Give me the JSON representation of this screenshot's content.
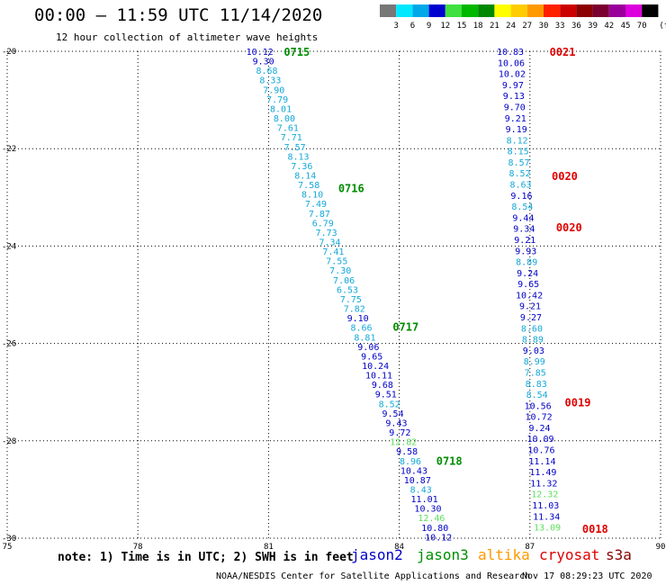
{
  "header": {
    "title": "00:00 – 11:59 UTC 11/14/2020",
    "subtitle": "12 hour collection of altimeter wave heights"
  },
  "legend": {
    "unit": "(ft)",
    "items": [
      {
        "label": "3",
        "color": "#777777"
      },
      {
        "label": "6",
        "color": "#00e8ff"
      },
      {
        "label": "9",
        "color": "#00a8e8"
      },
      {
        "label": "12",
        "color": "#0000d0"
      },
      {
        "label": "15",
        "color": "#40e040"
      },
      {
        "label": "18",
        "color": "#00b800"
      },
      {
        "label": "21",
        "color": "#008800"
      },
      {
        "label": "24",
        "color": "#ffff00"
      },
      {
        "label": "27",
        "color": "#ffcc00"
      },
      {
        "label": "30",
        "color": "#ff9900"
      },
      {
        "label": "33",
        "color": "#ff2000"
      },
      {
        "label": "36",
        "color": "#cc0000"
      },
      {
        "label": "39",
        "color": "#8b0000"
      },
      {
        "label": "42",
        "color": "#7a0030"
      },
      {
        "label": "45",
        "color": "#990099"
      },
      {
        "label": "70",
        "color": "#dd00dd"
      },
      {
        "label": "",
        "color": "#000000"
      }
    ]
  },
  "chart_data": {
    "type": "scatter",
    "xlim": [
      75,
      90
    ],
    "ylim": [
      -30,
      -20
    ],
    "x_ticks": [
      "75",
      "78",
      "81",
      "84",
      "87",
      "90"
    ],
    "y_ticks": [
      "-20",
      "-22",
      "-24",
      "-26",
      "-28",
      "-30"
    ],
    "grid": true,
    "colors": {
      "blue": "#0000c8",
      "cyan": "#14a8d8",
      "lightgreen": "#5ee05e",
      "green": "#008c00",
      "red": "#e00000"
    },
    "tracks": [
      {
        "x_start": 80.8,
        "y_start": -20.0,
        "x_end": 84.9,
        "y_end": -29.97,
        "points": [
          {
            "v": "10.12",
            "c": "blue"
          },
          {
            "v": "9.30",
            "c": "blue"
          },
          {
            "v": "8.68",
            "c": "cyan"
          },
          {
            "v": "8.33",
            "c": "cyan"
          },
          {
            "v": "7.90",
            "c": "cyan"
          },
          {
            "v": "7.79",
            "c": "cyan"
          },
          {
            "v": "8.01",
            "c": "cyan"
          },
          {
            "v": "8.00",
            "c": "cyan"
          },
          {
            "v": "7.61",
            "c": "cyan"
          },
          {
            "v": "7.71",
            "c": "cyan"
          },
          {
            "v": "7.57",
            "c": "cyan"
          },
          {
            "v": "8.13",
            "c": "cyan"
          },
          {
            "v": "7.36",
            "c": "cyan"
          },
          {
            "v": "8.14",
            "c": "cyan"
          },
          {
            "v": "7.58",
            "c": "cyan"
          },
          {
            "v": "8.10",
            "c": "cyan"
          },
          {
            "v": "7.49",
            "c": "cyan"
          },
          {
            "v": "7.87",
            "c": "cyan"
          },
          {
            "v": "6.79",
            "c": "cyan"
          },
          {
            "v": "7.73",
            "c": "cyan"
          },
          {
            "v": "7.34",
            "c": "cyan"
          },
          {
            "v": "7.41",
            "c": "cyan"
          },
          {
            "v": "7.55",
            "c": "cyan"
          },
          {
            "v": "7.30",
            "c": "cyan"
          },
          {
            "v": "7.06",
            "c": "cyan"
          },
          {
            "v": "6.53",
            "c": "cyan"
          },
          {
            "v": "7.75",
            "c": "cyan"
          },
          {
            "v": "7.82",
            "c": "cyan"
          },
          {
            "v": "9.10",
            "c": "blue"
          },
          {
            "v": "8.66",
            "c": "cyan"
          },
          {
            "v": "8.81",
            "c": "cyan"
          },
          {
            "v": "9.06",
            "c": "blue"
          },
          {
            "v": "9.65",
            "c": "blue"
          },
          {
            "v": "10.24",
            "c": "blue"
          },
          {
            "v": "10.11",
            "c": "blue"
          },
          {
            "v": "9.68",
            "c": "blue"
          },
          {
            "v": "9.51",
            "c": "blue"
          },
          {
            "v": "8.52",
            "c": "cyan"
          },
          {
            "v": "9.54",
            "c": "blue"
          },
          {
            "v": "9.43",
            "c": "blue"
          },
          {
            "v": "9.72",
            "c": "blue"
          },
          {
            "v": "12.82",
            "c": "lightgreen"
          },
          {
            "v": "9.58",
            "c": "blue"
          },
          {
            "v": "8.96",
            "c": "cyan"
          },
          {
            "v": "10.43",
            "c": "blue"
          },
          {
            "v": "10.87",
            "c": "blue"
          },
          {
            "v": "8.43",
            "c": "cyan"
          },
          {
            "v": "11.01",
            "c": "blue"
          },
          {
            "v": "10.30",
            "c": "blue"
          },
          {
            "v": "12.46",
            "c": "lightgreen"
          },
          {
            "v": "10.80",
            "c": "blue"
          },
          {
            "v": "10.12",
            "c": "blue"
          }
        ],
        "times": [
          {
            "label": "0715",
            "x": 81.35,
            "y": -20.0,
            "c": "green"
          },
          {
            "label": "0716",
            "x": 82.6,
            "y": -22.8,
            "c": "green"
          },
          {
            "label": "0717",
            "x": 83.85,
            "y": -25.65,
            "c": "green"
          },
          {
            "label": "0718",
            "x": 84.85,
            "y": -28.4,
            "c": "green"
          }
        ]
      },
      {
        "x_start": 86.55,
        "y_start": -20.0,
        "x_end": 87.4,
        "y_end": -29.77,
        "points": [
          {
            "v": "10.83",
            "c": "blue"
          },
          {
            "v": "10.06",
            "c": "blue"
          },
          {
            "v": "10.02",
            "c": "blue"
          },
          {
            "v": "9.97",
            "c": "blue"
          },
          {
            "v": "9.13",
            "c": "blue"
          },
          {
            "v": "9.70",
            "c": "blue"
          },
          {
            "v": "9.21",
            "c": "blue"
          },
          {
            "v": "9.19",
            "c": "blue"
          },
          {
            "v": "8.12",
            "c": "cyan"
          },
          {
            "v": "8.15",
            "c": "cyan"
          },
          {
            "v": "8.57",
            "c": "cyan"
          },
          {
            "v": "8.52",
            "c": "cyan"
          },
          {
            "v": "8.63",
            "c": "cyan"
          },
          {
            "v": "9.16",
            "c": "blue"
          },
          {
            "v": "8.54",
            "c": "cyan"
          },
          {
            "v": "9.44",
            "c": "blue"
          },
          {
            "v": "9.34",
            "c": "blue"
          },
          {
            "v": "9.21",
            "c": "blue"
          },
          {
            "v": "9.93",
            "c": "blue"
          },
          {
            "v": "8.89",
            "c": "cyan"
          },
          {
            "v": "9.24",
            "c": "blue"
          },
          {
            "v": "9.65",
            "c": "blue"
          },
          {
            "v": "10.42",
            "c": "blue"
          },
          {
            "v": "9.21",
            "c": "blue"
          },
          {
            "v": "9.27",
            "c": "blue"
          },
          {
            "v": "8.60",
            "c": "cyan"
          },
          {
            "v": "8.89",
            "c": "cyan"
          },
          {
            "v": "9.03",
            "c": "blue"
          },
          {
            "v": "8.99",
            "c": "cyan"
          },
          {
            "v": "7.85",
            "c": "cyan"
          },
          {
            "v": "8.83",
            "c": "cyan"
          },
          {
            "v": "8.54",
            "c": "cyan"
          },
          {
            "v": "10.56",
            "c": "blue"
          },
          {
            "v": "10.72",
            "c": "blue"
          },
          {
            "v": "9.24",
            "c": "blue"
          },
          {
            "v": "10.09",
            "c": "blue"
          },
          {
            "v": "10.76",
            "c": "blue"
          },
          {
            "v": "11.14",
            "c": "blue"
          },
          {
            "v": "11.49",
            "c": "blue"
          },
          {
            "v": "11.32",
            "c": "blue"
          },
          {
            "v": "12.32",
            "c": "lightgreen"
          },
          {
            "v": "11.03",
            "c": "blue"
          },
          {
            "v": "11.34",
            "c": "blue"
          },
          {
            "v": "13.09",
            "c": "lightgreen"
          }
        ],
        "times": [
          {
            "label": "0021",
            "x": 87.45,
            "y": -20.0,
            "c": "red"
          },
          {
            "label": "0020",
            "x": 87.5,
            "y": -22.55,
            "c": "red"
          },
          {
            "label": "0020",
            "x": 87.6,
            "y": -23.6,
            "c": "red"
          },
          {
            "label": "0019",
            "x": 87.8,
            "y": -27.2,
            "c": "red"
          },
          {
            "label": "0018",
            "x": 88.2,
            "y": -29.8,
            "c": "red"
          }
        ]
      }
    ]
  },
  "satellites": [
    {
      "name": "jason2",
      "color": "#0000c8"
    },
    {
      "name": "jason3",
      "color": "#009000"
    },
    {
      "name": "altika",
      "color": "#ff9900"
    },
    {
      "name": "cryosat",
      "color": "#e00000"
    },
    {
      "name": "s3a",
      "color": "#8b0000"
    }
  ],
  "note": "note: 1) Time is in UTC; 2) SWH is in feet",
  "footer": {
    "source": "NOAA/NESDIS Center for Satellite Applications and Research",
    "timestamp": "Nov 17 08:29:23 UTC 2020"
  }
}
